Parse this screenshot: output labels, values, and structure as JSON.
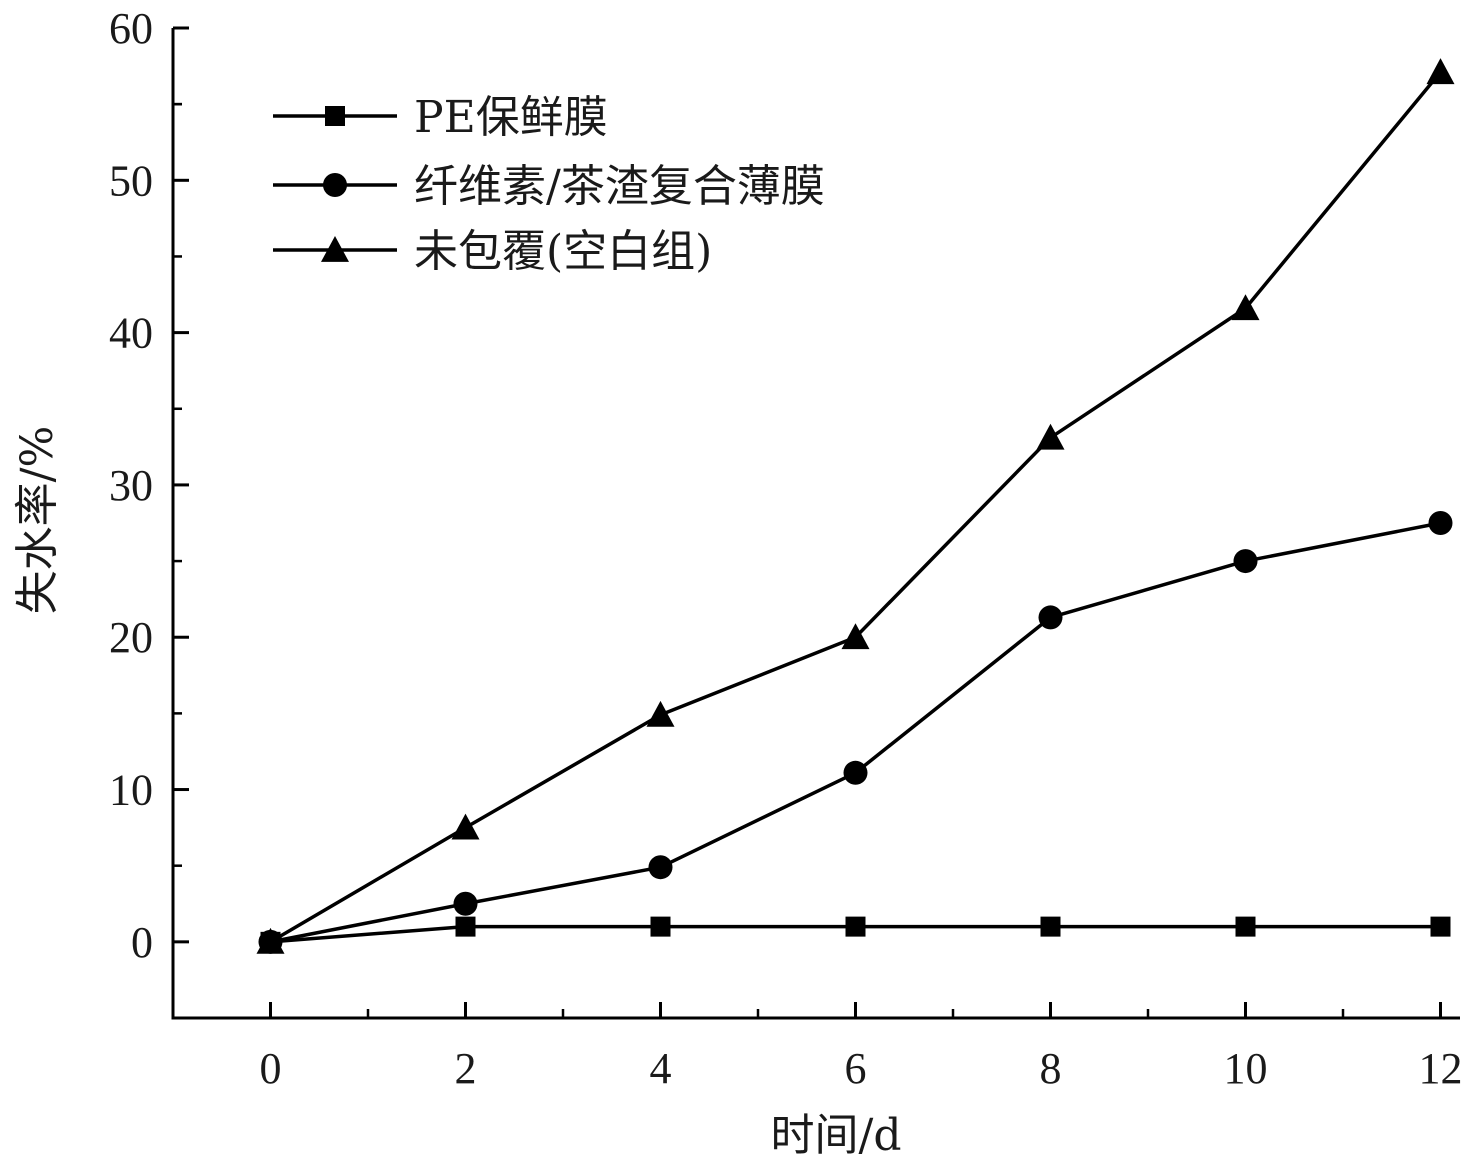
{
  "chart_data": {
    "type": "line",
    "title": "",
    "xlabel": "时间/d",
    "ylabel": "失水率/%",
    "x": [
      0,
      2,
      4,
      6,
      8,
      10,
      12
    ],
    "xlim": [
      -1,
      12.2
    ],
    "ylim": [
      -5,
      60
    ],
    "xticks": [
      "0",
      "2",
      "4",
      "6",
      "8",
      "10",
      "12"
    ],
    "yticks": [
      "0",
      "10",
      "20",
      "30",
      "40",
      "50",
      "60"
    ],
    "grid": false,
    "legend_position": "top-left",
    "series": [
      {
        "name": "PE保鲜膜",
        "marker": "square",
        "color": "#000000",
        "values": [
          0,
          1.0,
          1.0,
          1.0,
          1.0,
          1.0,
          1.0
        ]
      },
      {
        "name": "纤维素/茶渣复合薄膜",
        "marker": "circle",
        "color": "#000000",
        "values": [
          0,
          2.5,
          4.9,
          11.1,
          21.3,
          25.0,
          27.5
        ]
      },
      {
        "name": "未包覆(空白组)",
        "marker": "triangle",
        "color": "#000000",
        "values": [
          0,
          7.5,
          14.9,
          20.0,
          33.1,
          41.6,
          57.1
        ]
      }
    ]
  }
}
